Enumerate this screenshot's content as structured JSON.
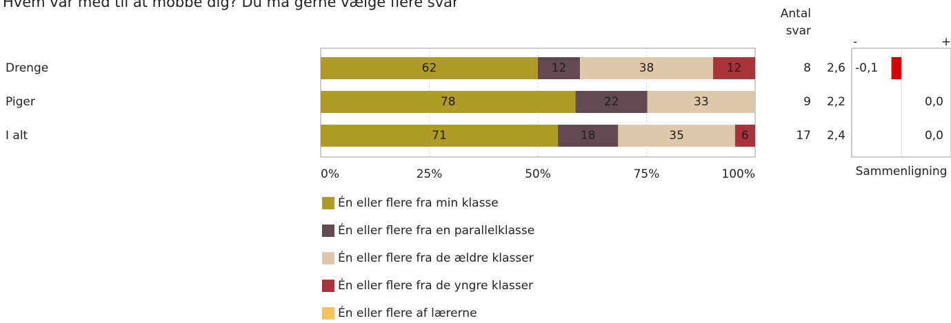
{
  "chart_data": {
    "type": "stacked_bar_horizontal",
    "title": "Hvem var med til at mobbe dig? Du må gerne vælge flere svar",
    "categories": [
      "Drenge",
      "Piger",
      "I alt"
    ],
    "series": [
      {
        "name": "Én eller flere fra min klasse",
        "color": "#b09a28",
        "values": [
          62,
          78,
          71
        ]
      },
      {
        "name": "Én eller flere fra en parallelklasse",
        "color": "#614a53",
        "values": [
          12,
          22,
          18
        ]
      },
      {
        "name": "Én eller flere fra de ældre klasser",
        "color": "#dfc8aa",
        "values": [
          38,
          33,
          35
        ]
      },
      {
        "name": "Én eller flere fra de yngre klasser",
        "color": "#a8333a",
        "values": [
          12,
          null,
          6
        ]
      },
      {
        "name": "Én eller flere af lærerne",
        "color": "#f8c15a",
        "values": [
          null,
          null,
          null
        ]
      }
    ],
    "xlim": [
      0,
      100
    ],
    "xticks": [
      {
        "value": 0,
        "label": "0%"
      },
      {
        "value": 25,
        "label": "25%"
      },
      {
        "value": 50,
        "label": "50%"
      },
      {
        "value": 75,
        "label": "75%"
      },
      {
        "value": 100,
        "label": "100%"
      }
    ],
    "count_header": [
      "Antal",
      "svar"
    ],
    "counts": [
      8,
      9,
      17
    ],
    "means": [
      2.6,
      2.2,
      2.4
    ],
    "mean_labels": [
      "2,6",
      "2,2",
      "2,4"
    ],
    "comparison": {
      "title": "Sammenligning",
      "minus": "-",
      "plus": "+",
      "values": [
        -0.1,
        0.0,
        0.0
      ],
      "value_labels": [
        "-0,1",
        "0,0",
        "0,0"
      ],
      "xlim": [
        -0.5,
        0.5
      ],
      "color": "#d40000"
    }
  }
}
